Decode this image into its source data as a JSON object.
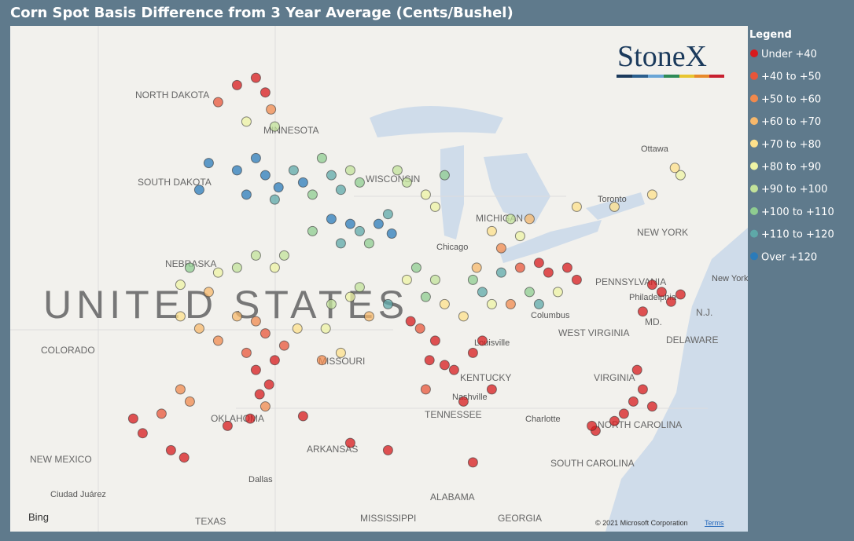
{
  "title": "Corn Spot Basis Difference from 3 Year Average (Cents/Bushel)",
  "legend": {
    "title": "Legend",
    "items": [
      {
        "label": "Under +40",
        "color": "#d7191c"
      },
      {
        "label": "+40 to +50",
        "color": "#e8553a"
      },
      {
        "label": "+50 to +60",
        "color": "#f0894d"
      },
      {
        "label": "+60 to +70",
        "color": "#f7b86b"
      },
      {
        "label": "+70 to +80",
        "color": "#fde08b"
      },
      {
        "label": "+80 to +90",
        "color": "#eef3a4"
      },
      {
        "label": "+90 to +100",
        "color": "#c2e29a"
      },
      {
        "label": "+100 to +110",
        "color": "#8fcc90"
      },
      {
        "label": "+110 to +120",
        "color": "#5ea8a8"
      },
      {
        "label": "Over +120",
        "color": "#2b7bb9"
      }
    ]
  },
  "logo": "StoneX",
  "map_labels": [
    "NORTH DAKOTA",
    "MINNESOTA",
    "SOUTH DAKOTA",
    "WISCONSIN",
    "MICHIGAN",
    "NEBRASKA",
    "UNITED STATES",
    "COLORADO",
    "MISSOURI",
    "KENTUCKY",
    "TENNESSEE",
    "OKLAHOMA",
    "ARKANSAS",
    "NEW MEXICO",
    "TEXAS",
    "MISSISSIPPI",
    "ALABAMA",
    "GEORGIA",
    "SOUTH CAROLINA",
    "NORTH CAROLINA",
    "VIRGINIA",
    "WEST VIRGINIA",
    "NEW YORK",
    "PENNSYLVANIA",
    "DELAWARE",
    "MD.",
    "N.J.",
    "Ottawa",
    "Chicago",
    "Columbus",
    "Louisville",
    "Nashville",
    "Charlotte",
    "Dallas",
    "Ciudad Juárez",
    "Philadelphia",
    "New York",
    "Toronto"
  ],
  "bing": "Bing",
  "copyright": "© 2021 Microsoft Corporation",
  "terms": "Terms",
  "points": [
    [
      -99,
      48.5,
      0
    ],
    [
      -98,
      48.8,
      0
    ],
    [
      -97.5,
      48.2,
      0
    ],
    [
      -100,
      47.8,
      1
    ],
    [
      -97.2,
      47.5,
      2
    ],
    [
      -98.5,
      47,
      5
    ],
    [
      -97,
      46.8,
      6
    ],
    [
      -99,
      45,
      9
    ],
    [
      -98,
      45.5,
      9
    ],
    [
      -97.5,
      44.8,
      9
    ],
    [
      -96.8,
      44.3,
      9
    ],
    [
      -98.5,
      44,
      9
    ],
    [
      -97,
      43.8,
      8
    ],
    [
      -96,
      45,
      8
    ],
    [
      -95.5,
      44.5,
      9
    ],
    [
      -100.5,
      45.3,
      9
    ],
    [
      -101,
      44.2,
      9
    ],
    [
      -94.5,
      45.5,
      7
    ],
    [
      -94,
      44.8,
      8
    ],
    [
      -93.5,
      44.2,
      8
    ],
    [
      -95,
      44,
      7
    ],
    [
      -93,
      45,
      6
    ],
    [
      -92.5,
      44.5,
      7
    ],
    [
      -94,
      43,
      9
    ],
    [
      -93,
      42.8,
      9
    ],
    [
      -92.5,
      42.5,
      8
    ],
    [
      -91.5,
      42.8,
      9
    ],
    [
      -91,
      43.2,
      8
    ],
    [
      -93.5,
      42,
      8
    ],
    [
      -95,
      42.5,
      7
    ],
    [
      -92,
      42,
      7
    ],
    [
      -90.8,
      42.4,
      9
    ],
    [
      -90,
      44.5,
      6
    ],
    [
      -89,
      44,
      5
    ],
    [
      -88.5,
      43.5,
      5
    ],
    [
      -90.5,
      45,
      6
    ],
    [
      -88,
      44.8,
      7
    ],
    [
      -85.5,
      42.5,
      4
    ],
    [
      -84.5,
      43,
      6
    ],
    [
      -83.5,
      43,
      3
    ],
    [
      -84,
      42.3,
      5
    ],
    [
      -85,
      41.8,
      2
    ],
    [
      -81,
      43.5,
      4
    ],
    [
      -79,
      43.5,
      4
    ],
    [
      -77,
      44,
      4
    ],
    [
      -75.5,
      44.8,
      5
    ],
    [
      -75.8,
      45.1,
      4
    ],
    [
      -99,
      41,
      6
    ],
    [
      -98,
      41.5,
      6
    ],
    [
      -97,
      41,
      5
    ],
    [
      -96.5,
      41.5,
      6
    ],
    [
      -100,
      40.8,
      5
    ],
    [
      -101.5,
      41,
      7
    ],
    [
      -102,
      40.3,
      5
    ],
    [
      -100.5,
      40,
      3
    ],
    [
      -99,
      39,
      3
    ],
    [
      -98,
      38.8,
      2
    ],
    [
      -97.5,
      38.3,
      1
    ],
    [
      -98.5,
      37.5,
      1
    ],
    [
      -97,
      37.2,
      0
    ],
    [
      -96.5,
      37.8,
      1
    ],
    [
      -100,
      38,
      2
    ],
    [
      -101,
      38.5,
      3
    ],
    [
      -102,
      39,
      4
    ],
    [
      -95.8,
      38.5,
      4
    ],
    [
      -98,
      36.8,
      0
    ],
    [
      -97.3,
      36.2,
      0
    ],
    [
      -97.8,
      35.8,
      0
    ],
    [
      -99.5,
      34.5,
      0
    ],
    [
      -98.3,
      34.8,
      0
    ],
    [
      -102,
      36,
      2
    ],
    [
      -101.5,
      35.5,
      2
    ],
    [
      -103,
      35,
      1
    ],
    [
      -102.5,
      33.5,
      0
    ],
    [
      -101.8,
      33.2,
      0
    ],
    [
      -94,
      39.5,
      6
    ],
    [
      -93,
      39.8,
      5
    ],
    [
      -92.5,
      40.2,
      6
    ],
    [
      -94.3,
      38.5,
      5
    ],
    [
      -93.5,
      37.5,
      4
    ],
    [
      -92,
      39,
      3
    ],
    [
      -91,
      39.5,
      8
    ],
    [
      -94.5,
      37.2,
      2
    ],
    [
      -89.5,
      41,
      7
    ],
    [
      -88.5,
      40.5,
      6
    ],
    [
      -89,
      39.8,
      7
    ],
    [
      -90,
      40.5,
      5
    ],
    [
      -88,
      39.5,
      4
    ],
    [
      -89.3,
      38.5,
      1
    ],
    [
      -88.5,
      38,
      0
    ],
    [
      -89.8,
      38.8,
      0
    ],
    [
      -88.8,
      37.2,
      0
    ],
    [
      -88,
      37,
      0
    ],
    [
      -87.5,
      36.8,
      0
    ],
    [
      -86.5,
      37.5,
      0
    ],
    [
      -85.5,
      36,
      0
    ],
    [
      -87,
      35.5,
      0
    ],
    [
      -89,
      36,
      1
    ],
    [
      -86,
      38,
      0
    ],
    [
      -86.5,
      40.5,
      7
    ],
    [
      -86,
      40,
      8
    ],
    [
      -85.5,
      39.5,
      5
    ],
    [
      -87,
      39,
      4
    ],
    [
      -86.3,
      41,
      3
    ],
    [
      -85,
      40.8,
      8
    ],
    [
      -84,
      41,
      1
    ],
    [
      -83,
      41.2,
      0
    ],
    [
      -82.5,
      40.8,
      0
    ],
    [
      -83.5,
      40,
      7
    ],
    [
      -82,
      40,
      5
    ],
    [
      -84.5,
      39.5,
      2
    ],
    [
      -81.5,
      41,
      0
    ],
    [
      -81,
      40.5,
      0
    ],
    [
      -83,
      39.5,
      8
    ],
    [
      -77,
      40.3,
      0
    ],
    [
      -76.5,
      40,
      0
    ],
    [
      -76,
      39.6,
      0
    ],
    [
      -75.5,
      39.9,
      0
    ],
    [
      -77.5,
      39.2,
      0
    ],
    [
      -77.5,
      36,
      0
    ],
    [
      -78,
      35.5,
      0
    ],
    [
      -77,
      35.3,
      0
    ],
    [
      -79,
      34.7,
      0
    ],
    [
      -78.5,
      35,
      0
    ],
    [
      -77.8,
      36.8,
      0
    ],
    [
      -80,
      34.3,
      0
    ],
    [
      -80.2,
      34.5,
      0
    ],
    [
      -91,
      33.5,
      0
    ],
    [
      -93,
      33.8,
      0
    ],
    [
      -86.5,
      33,
      0
    ],
    [
      -104.5,
      34.8,
      0
    ],
    [
      -104,
      34.2,
      0
    ],
    [
      -95.5,
      34.9,
      0
    ],
    [
      -97.5,
      35.3,
      2
    ]
  ]
}
